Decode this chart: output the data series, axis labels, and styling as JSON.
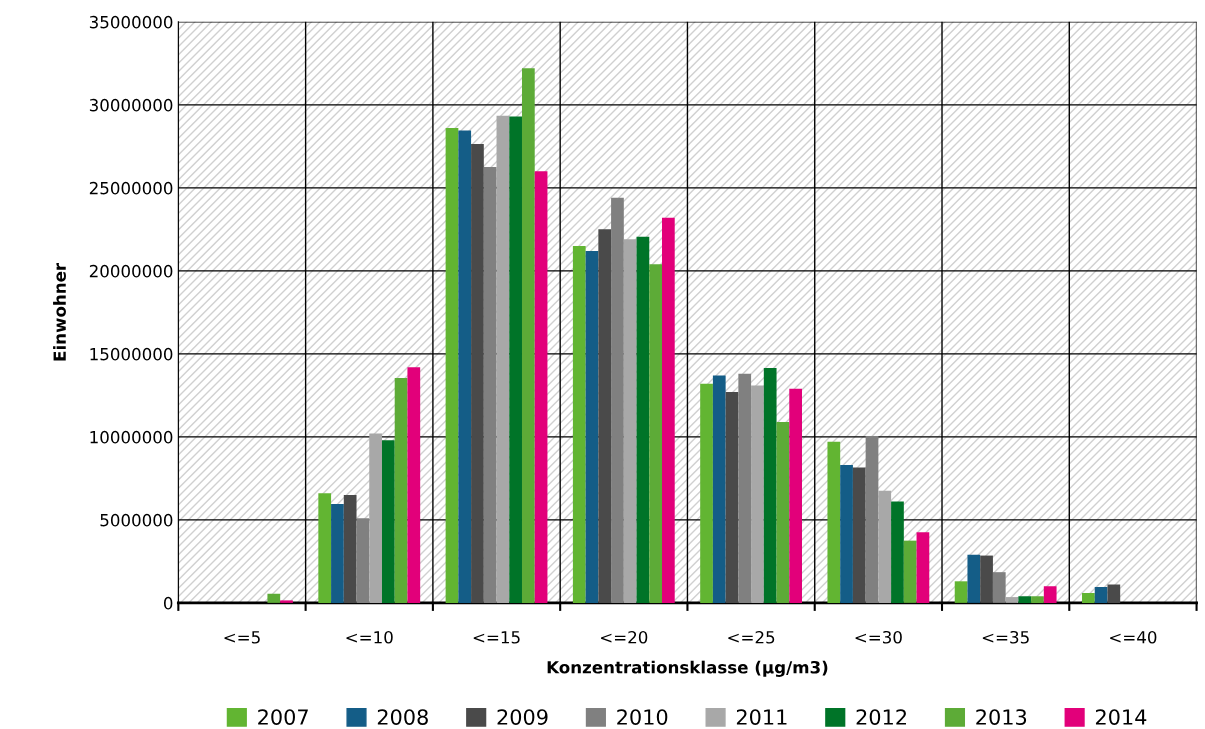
{
  "chart_data": {
    "type": "bar",
    "xlabel": "Konzentrationsklasse (µg/m3)",
    "ylabel": "Einwohner",
    "categories": [
      "<=5",
      "<=10",
      "<=15",
      "<=20",
      "<=25",
      "<=30",
      "<=35",
      "<=40"
    ],
    "series": [
      {
        "name": "2007",
        "color": "#62b532",
        "values": [
          0,
          6600000,
          28600000,
          21500000,
          13200000,
          9700000,
          1300000,
          600000
        ]
      },
      {
        "name": "2008",
        "color": "#145d87",
        "values": [
          0,
          5950000,
          28450000,
          21200000,
          13700000,
          8300000,
          2900000,
          950000
        ]
      },
      {
        "name": "2009",
        "color": "#4a4a4a",
        "values": [
          0,
          6500000,
          27650000,
          22500000,
          12700000,
          8150000,
          2850000,
          1100000
        ]
      },
      {
        "name": "2010",
        "color": "#808080",
        "values": [
          0,
          5100000,
          26250000,
          24400000,
          13800000,
          10050000,
          1850000,
          0
        ]
      },
      {
        "name": "2011",
        "color": "#a8a8a8",
        "values": [
          0,
          10200000,
          29350000,
          21900000,
          13100000,
          6750000,
          350000,
          0
        ]
      },
      {
        "name": "2012",
        "color": "#007428",
        "values": [
          0,
          9800000,
          29300000,
          22050000,
          14150000,
          6100000,
          400000,
          0
        ]
      },
      {
        "name": "2013",
        "color": "#5dab37",
        "values": [
          550000,
          13550000,
          32200000,
          20400000,
          10900000,
          3750000,
          400000,
          0
        ]
      },
      {
        "name": "2014",
        "color": "#e2007a",
        "values": [
          150000,
          14200000,
          26000000,
          23200000,
          12900000,
          4250000,
          1000000,
          0
        ]
      }
    ],
    "ylim": [
      0,
      35000000
    ],
    "yticks": [
      0,
      5000000,
      10000000,
      15000000,
      20000000,
      25000000,
      30000000,
      35000000
    ],
    "grid": true,
    "legend": "bottom"
  }
}
